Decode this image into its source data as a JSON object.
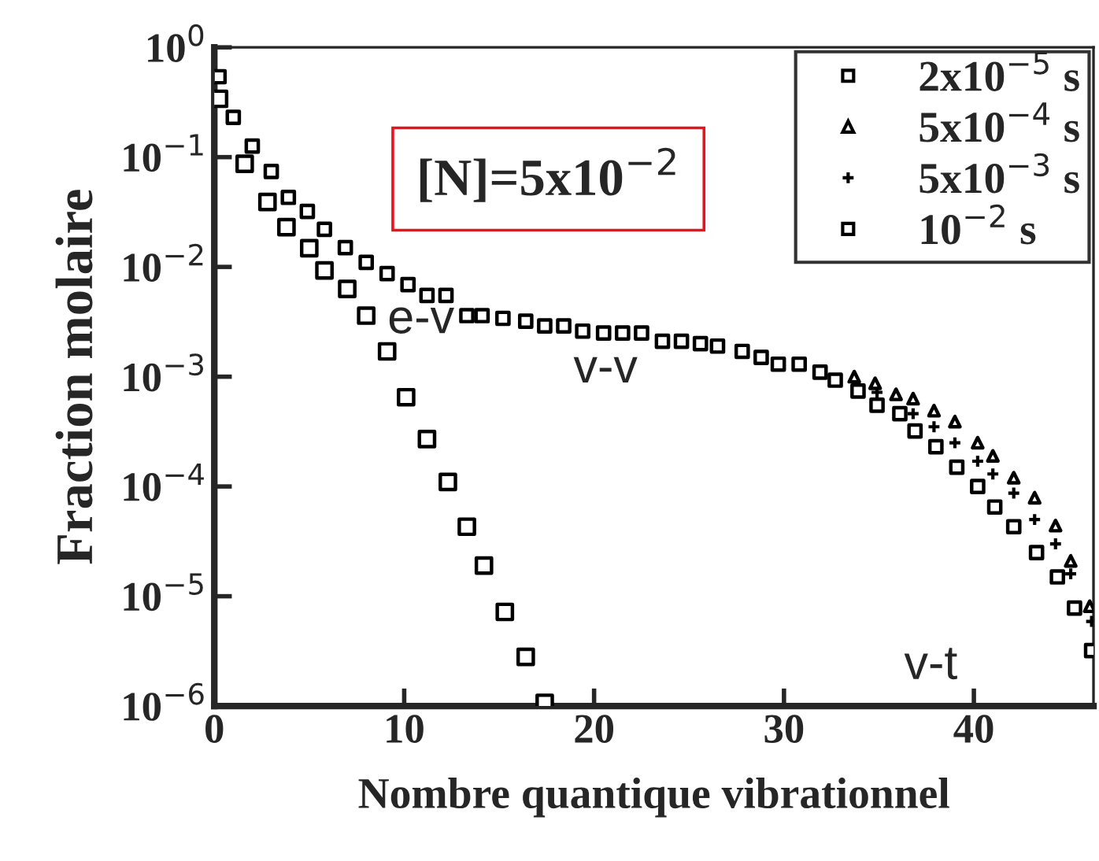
{
  "chart_data": {
    "type": "scatter",
    "xlabel": "Nombre quantique vibrationnel",
    "ylabel": "Fraction molaire",
    "log": "y",
    "xlim": [
      0,
      46.3
    ],
    "ylim": [
      1e-06,
      1
    ],
    "xticks": [
      0,
      10,
      20,
      30,
      40
    ],
    "yticks": [
      {
        "value": 1,
        "label": "10$^{0}$"
      },
      {
        "value": 0.1,
        "label": "10$^{−1}$"
      },
      {
        "value": 0.01,
        "label": "10$^{−2}$"
      },
      {
        "value": 0.001,
        "label": "10$^{−3}$"
      },
      {
        "value": 0.0001,
        "label": "10$^{−4}$"
      },
      {
        "value": 1e-05,
        "label": "10$^{−5}$"
      },
      {
        "value": 1e-06,
        "label": "10$^{−6}$"
      }
    ],
    "grid": false,
    "legend": "top right",
    "annotations": [
      "[N]=5x10$^{−2}$",
      "e-v",
      "v-v",
      "v-t"
    ],
    "series": [
      {
        "name": "2x10$^{−5}$ s",
        "color": "#000000",
        "marker": "square",
        "x": [
          0.25,
          1.6,
          2.8,
          3.8,
          5,
          5.8,
          7,
          8,
          9.1,
          10.1,
          11.2,
          12.3,
          13.3,
          14.2,
          15.3,
          16.4,
          17.4
        ],
        "values": [
          0.34,
          0.087,
          0.039,
          0.023,
          0.0148,
          0.0093,
          0.0063,
          0.0036,
          0.0017,
          0.00065,
          0.00027,
          0.00011,
          4.3e-05,
          1.9e-05,
          7.2e-06,
          2.8e-06,
          1.07e-06
        ]
      },
      {
        "name": "5x10$^{−4}$ s",
        "color": "#000000",
        "marker": "triangle",
        "x": [
          33.7,
          34.8,
          35.9,
          36.8,
          37.9,
          39,
          40.2,
          41,
          42.1,
          43.2,
          44.3,
          45.1,
          46.1
        ],
        "values": [
          0.001,
          0.00087,
          0.00069,
          0.00063,
          0.00049,
          0.00039,
          0.00025,
          0.00019,
          0.00012,
          7.9e-05,
          4.4e-05,
          2.1e-05,
          8.1e-06
        ]
      },
      {
        "name": "5x10$^{−3}$ s",
        "color": "#000000",
        "marker": "cross",
        "x": [
          34.9,
          36.8,
          37.9,
          39,
          40.2,
          41,
          42.1,
          43.2,
          44.3,
          45.1,
          46.2
        ],
        "values": [
          0.00072,
          0.00046,
          0.00035,
          0.00025,
          0.00017,
          0.00013,
          8.7e-05,
          5e-05,
          3e-05,
          1.6e-05,
          5.9e-06
        ]
      },
      {
        "name": "10$^{−2}$ s",
        "color": "#000000",
        "marker": "square",
        "x": [
          0.25,
          1,
          2,
          3,
          3.9,
          4.9,
          5.8,
          6.9,
          8,
          9.1,
          10.2,
          11.2,
          12.2,
          13.3,
          14.1,
          15.2,
          16.4,
          17.4,
          18.4,
          19.4,
          20.5,
          21.5,
          22.5,
          23.6,
          24.6,
          25.6,
          26.5,
          27.8,
          28.8,
          29.7,
          30.8,
          31.9,
          32.7,
          33.9,
          34.9,
          36.1,
          36.9,
          38,
          39.1,
          40.2,
          41.1,
          42.1,
          43.3,
          44.4,
          45.3,
          46.2
        ],
        "values": [
          0.54,
          0.23,
          0.126,
          0.074,
          0.043,
          0.032,
          0.022,
          0.015,
          0.011,
          0.0087,
          0.0069,
          0.0055,
          0.0055,
          0.0036,
          0.0036,
          0.0034,
          0.0032,
          0.0029,
          0.0029,
          0.0026,
          0.0025,
          0.0025,
          0.0025,
          0.0021,
          0.0021,
          0.002,
          0.0019,
          0.0017,
          0.0015,
          0.0013,
          0.0013,
          0.0011,
          0.00093,
          0.00074,
          0.00055,
          0.00046,
          0.00032,
          0.00023,
          0.00015,
          0.0001,
          6.5e-05,
          4.3e-05,
          2.5e-05,
          1.5e-05,
          7.8e-06,
          3.2e-06
        ]
      }
    ]
  }
}
